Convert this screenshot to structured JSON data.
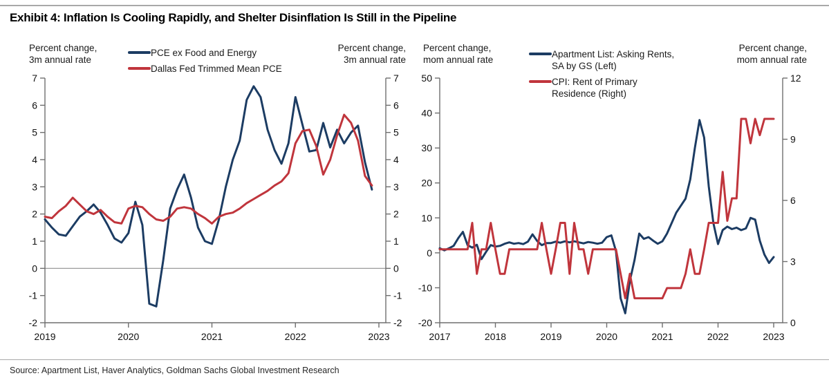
{
  "page": {
    "title": "Exhibit 4: Inflation Is Cooling Rapidly, and Shelter Disinflation Is Still in the Pipeline",
    "source": "Source: Apartment List, Haver Analytics, Goldman Sachs Global Investment Research"
  },
  "colors": {
    "navy": "#1c3c63",
    "red": "#c0353c",
    "axis": "#6e6e6e",
    "zero_line": "#8f8f8f",
    "tick_text": "#111111"
  },
  "chart_data": [
    {
      "type": "line",
      "axis_label_left": "Percent change,\n3m annual rate",
      "axis_label_right": "Percent change,\n3m annual rate",
      "x_ticks": [
        2019,
        2020,
        2021,
        2022,
        2023
      ],
      "left_axis": {
        "min": -2,
        "max": 7,
        "ticks": [
          7,
          6,
          5,
          4,
          3,
          2,
          1,
          0,
          -1,
          -2
        ]
      },
      "right_axis": {
        "min": -2,
        "max": 7,
        "ticks": [
          7,
          6,
          5,
          4,
          3,
          2,
          1,
          0,
          -1,
          -2
        ]
      },
      "zero_line": true,
      "grid": false,
      "legend_position": "top-center",
      "legend": [
        {
          "label": "PCE ex Food and Energy",
          "color": "navy"
        },
        {
          "label": "Dallas Fed Trimmed Mean PCE",
          "color": "red"
        }
      ],
      "series": [
        {
          "name": "PCE ex Food and Energy",
          "axis": "left",
          "color": "navy",
          "start_year": 2019.0,
          "frequency": "monthly",
          "values": [
            1.8,
            1.5,
            1.25,
            1.2,
            1.55,
            1.9,
            2.1,
            2.35,
            2.05,
            1.6,
            1.1,
            0.95,
            1.3,
            2.45,
            1.6,
            -1.3,
            -1.4,
            0.3,
            2.2,
            2.9,
            3.45,
            2.6,
            1.5,
            1.0,
            0.9,
            1.8,
            3.0,
            4.0,
            4.7,
            6.2,
            6.7,
            6.3,
            5.1,
            4.35,
            3.85,
            4.6,
            6.3,
            5.3,
            4.3,
            4.35,
            5.35,
            4.45,
            5.1,
            4.6,
            5.0,
            5.25,
            3.9,
            2.9
          ]
        },
        {
          "name": "Dallas Fed Trimmed Mean PCE",
          "axis": "left",
          "color": "red",
          "start_year": 2019.0,
          "frequency": "monthly",
          "values": [
            1.9,
            1.85,
            2.1,
            2.3,
            2.6,
            2.35,
            2.1,
            2.0,
            2.15,
            1.9,
            1.7,
            1.65,
            2.2,
            2.3,
            2.25,
            2.0,
            1.8,
            1.75,
            1.9,
            2.2,
            2.25,
            2.2,
            2.0,
            1.85,
            1.65,
            1.9,
            2.0,
            2.05,
            2.2,
            2.4,
            2.55,
            2.7,
            2.85,
            3.05,
            3.2,
            3.5,
            4.6,
            5.05,
            5.1,
            4.5,
            3.45,
            4.0,
            4.9,
            5.65,
            5.35,
            4.7,
            3.4,
            3.05
          ]
        }
      ]
    },
    {
      "type": "line",
      "axis_label_left": "Percent change,\nmom annual rate",
      "axis_label_right": "Percent change,\nmom annual rate",
      "x_ticks": [
        2017,
        2018,
        2019,
        2020,
        2021,
        2022,
        2023
      ],
      "left_axis": {
        "min": -20,
        "max": 50,
        "ticks": [
          50,
          40,
          30,
          20,
          10,
          0,
          -10,
          -20
        ]
      },
      "right_axis": {
        "min": 0,
        "max": 12,
        "ticks": [
          12,
          9,
          6,
          3,
          0
        ]
      },
      "zero_line": false,
      "grid": false,
      "legend_position": "top-center",
      "legend": [
        {
          "label": "Apartment List: Asking Rents,\nSA by GS (Left)",
          "color": "navy"
        },
        {
          "label": "CPI: Rent of Primary\nResidence (Right)",
          "color": "red"
        }
      ],
      "series": [
        {
          "name": "Apartment List: Asking Rents, SA by GS",
          "axis": "left",
          "color": "navy",
          "start_year": 2017.0,
          "frequency": "monthly",
          "values": [
            1.3,
            0.7,
            1.3,
            2.0,
            4.2,
            6.0,
            2.2,
            1.5,
            2.3,
            -1.8,
            0.3,
            2.2,
            1.8,
            2.0,
            2.6,
            3.0,
            2.6,
            2.8,
            2.5,
            3.2,
            5.3,
            3.4,
            2.2,
            2.8,
            2.8,
            3.2,
            2.9,
            3.3,
            3.0,
            3.3,
            3.0,
            2.7,
            3.1,
            2.9,
            2.6,
            2.9,
            4.5,
            5.0,
            0.5,
            -13.0,
            -17.3,
            -8.0,
            -2.0,
            5.5,
            4.0,
            4.5,
            3.5,
            2.6,
            3.3,
            5.5,
            8.5,
            11.5,
            13.5,
            15.5,
            21.0,
            30.0,
            38.0,
            33.0,
            19.0,
            8.5,
            2.5,
            6.5,
            7.5,
            6.8,
            7.2,
            6.5,
            7.0,
            10.0,
            9.5,
            3.5,
            -0.5,
            -2.9,
            -1.2
          ]
        },
        {
          "name": "CPI: Rent of Primary Residence",
          "axis": "right",
          "color": "red",
          "start_year": 2017.0,
          "frequency": "monthly",
          "values": [
            3.6,
            3.6,
            3.6,
            3.6,
            3.6,
            3.6,
            3.6,
            4.9,
            2.4,
            3.6,
            3.6,
            4.9,
            3.6,
            2.4,
            2.4,
            3.6,
            3.6,
            3.6,
            3.6,
            3.6,
            3.6,
            3.6,
            4.9,
            3.6,
            2.4,
            3.6,
            4.9,
            4.9,
            2.4,
            4.9,
            3.6,
            3.6,
            2.4,
            3.6,
            3.6,
            3.6,
            3.6,
            3.6,
            3.6,
            2.4,
            1.2,
            2.4,
            1.2,
            1.2,
            1.2,
            1.2,
            1.2,
            1.2,
            1.2,
            1.7,
            1.7,
            1.7,
            1.7,
            2.4,
            3.6,
            2.4,
            2.4,
            3.6,
            4.9,
            4.9,
            4.9,
            7.4,
            5.0,
            6.1,
            6.1,
            10.0,
            10.0,
            8.8,
            10.0,
            9.2,
            10.0,
            10.0,
            10.0
          ]
        }
      ]
    }
  ]
}
